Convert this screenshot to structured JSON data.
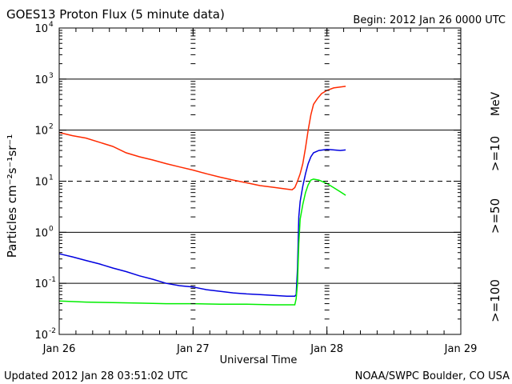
{
  "chart_data": {
    "type": "line",
    "title": "GOES13 Proton Flux (5 minute data)",
    "begin_label": "Begin: 2012 Jan 26 0000 UTC",
    "xlabel": "Universal Time",
    "ylabel": "Particles cm⁻²s⁻¹sr⁻¹",
    "updated": "Updated 2012 Jan 28 03:51:02 UTC",
    "credit": "NOAA/SWPC Boulder, CO USA",
    "y_scale": "log",
    "ylim": [
      0.01,
      10000
    ],
    "xlim": [
      0,
      3
    ],
    "x_ticks": [
      {
        "v": 0,
        "label": "Jan 26"
      },
      {
        "v": 1,
        "label": "Jan 27"
      },
      {
        "v": 2,
        "label": "Jan 28"
      },
      {
        "v": 3,
        "label": "Jan 29"
      }
    ],
    "y_ticks": [
      {
        "exp": -2,
        "base": "10",
        "sup": "-2"
      },
      {
        "exp": -1,
        "base": "10",
        "sup": "-1"
      },
      {
        "exp": 0,
        "base": "10",
        "sup": "0"
      },
      {
        "exp": 1,
        "base": "10",
        "sup": "1"
      },
      {
        "exp": 2,
        "base": "10",
        "sup": "2"
      },
      {
        "exp": 3,
        "base": "10",
        "sup": "3"
      },
      {
        "exp": 4,
        "base": "10",
        "sup": "4"
      }
    ],
    "threshold_lines": [
      {
        "value": 10,
        "style": "dashed"
      },
      {
        "value": 0.1,
        "style": "solid"
      },
      {
        "value": 1,
        "style": "solid"
      },
      {
        "value": 100,
        "style": "solid"
      },
      {
        "value": 1000,
        "style": "solid"
      }
    ],
    "mev_label": "MeV",
    "series": [
      {
        "name": ">=10",
        "color": "#ff2a00",
        "points": [
          [
            0,
            90
          ],
          [
            0.1,
            78
          ],
          [
            0.2,
            70
          ],
          [
            0.3,
            58
          ],
          [
            0.4,
            48
          ],
          [
            0.5,
            36
          ],
          [
            0.6,
            30
          ],
          [
            0.7,
            26
          ],
          [
            0.8,
            22
          ],
          [
            0.9,
            19
          ],
          [
            1.0,
            16.5
          ],
          [
            1.1,
            14
          ],
          [
            1.2,
            12
          ],
          [
            1.3,
            10.5
          ],
          [
            1.4,
            9.3
          ],
          [
            1.5,
            8.2
          ],
          [
            1.6,
            7.6
          ],
          [
            1.7,
            7.0
          ],
          [
            1.74,
            6.8
          ],
          [
            1.76,
            7.5
          ],
          [
            1.78,
            10
          ],
          [
            1.8,
            14
          ],
          [
            1.82,
            22
          ],
          [
            1.84,
            45
          ],
          [
            1.86,
            100
          ],
          [
            1.88,
            200
          ],
          [
            1.9,
            320
          ],
          [
            1.93,
            420
          ],
          [
            1.96,
            520
          ],
          [
            2.0,
            600
          ],
          [
            2.05,
            670
          ],
          [
            2.1,
            700
          ],
          [
            2.14,
            720
          ]
        ]
      },
      {
        "name": ">=50",
        "color": "#0000e0",
        "points": [
          [
            0,
            0.38
          ],
          [
            0.1,
            0.33
          ],
          [
            0.2,
            0.28
          ],
          [
            0.3,
            0.24
          ],
          [
            0.4,
            0.2
          ],
          [
            0.5,
            0.17
          ],
          [
            0.6,
            0.14
          ],
          [
            0.7,
            0.12
          ],
          [
            0.8,
            0.1
          ],
          [
            0.9,
            0.09
          ],
          [
            1.0,
            0.085
          ],
          [
            1.1,
            0.075
          ],
          [
            1.2,
            0.07
          ],
          [
            1.3,
            0.065
          ],
          [
            1.4,
            0.062
          ],
          [
            1.5,
            0.06
          ],
          [
            1.6,
            0.058
          ],
          [
            1.7,
            0.056
          ],
          [
            1.76,
            0.056
          ],
          [
            1.77,
            0.06
          ],
          [
            1.78,
            0.2
          ],
          [
            1.79,
            2.0
          ],
          [
            1.8,
            4.0
          ],
          [
            1.82,
            8
          ],
          [
            1.84,
            14
          ],
          [
            1.86,
            22
          ],
          [
            1.88,
            30
          ],
          [
            1.9,
            36
          ],
          [
            1.94,
            40
          ],
          [
            2.0,
            42
          ],
          [
            2.05,
            41
          ],
          [
            2.1,
            40
          ],
          [
            2.14,
            41
          ]
        ]
      },
      {
        "name": ">=100",
        "color": "#00ee00",
        "points": [
          [
            0,
            0.045
          ],
          [
            0.2,
            0.043
          ],
          [
            0.4,
            0.042
          ],
          [
            0.6,
            0.041
          ],
          [
            0.8,
            0.04
          ],
          [
            1.0,
            0.04
          ],
          [
            1.2,
            0.039
          ],
          [
            1.4,
            0.039
          ],
          [
            1.6,
            0.038
          ],
          [
            1.76,
            0.038
          ],
          [
            1.77,
            0.05
          ],
          [
            1.78,
            0.1
          ],
          [
            1.79,
            0.6
          ],
          [
            1.8,
            1.8
          ],
          [
            1.82,
            3.5
          ],
          [
            1.84,
            6
          ],
          [
            1.86,
            8.5
          ],
          [
            1.88,
            10.5
          ],
          [
            1.9,
            11
          ],
          [
            1.94,
            10.5
          ],
          [
            2.0,
            9
          ],
          [
            2.05,
            7.5
          ],
          [
            2.1,
            6.2
          ],
          [
            2.14,
            5.3
          ]
        ]
      }
    ]
  }
}
